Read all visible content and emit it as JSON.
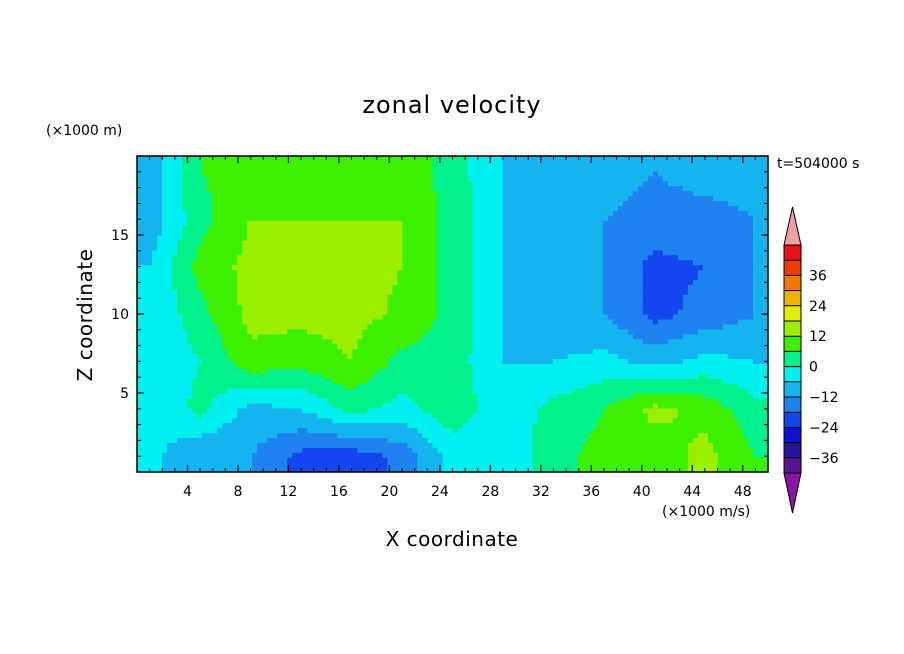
{
  "chart_data": {
    "type": "heatmap",
    "title": "zonal velocity",
    "xlabel": "X coordinate",
    "ylabel": "Z coordinate",
    "x_unit": "(×1000 m/s)",
    "y_unit": "(×1000 m)",
    "time_label": "t=504000 s",
    "xlim": [
      0,
      50
    ],
    "ylim": [
      0,
      20
    ],
    "x_ticks": [
      4,
      8,
      12,
      16,
      20,
      24,
      28,
      32,
      36,
      40,
      44,
      48
    ],
    "y_ticks": [
      5,
      10,
      15
    ],
    "grid": false,
    "colorbar": {
      "levels": [
        -42,
        -36,
        -30,
        -24,
        -18,
        -12,
        -6,
        0,
        6,
        12,
        18,
        24,
        30,
        36,
        42
      ],
      "colors": [
        "#5a1490",
        "#23149b",
        "#0a14d2",
        "#1446f0",
        "#1e82f0",
        "#14b4f0",
        "#00f0f0",
        "#00f08c",
        "#3cf000",
        "#9bf000",
        "#dcf000",
        "#f0b400",
        "#f07800",
        "#f03c00",
        "#e61414"
      ],
      "tick_labels": [
        "36",
        "24",
        "12",
        "0",
        "−12",
        "−24",
        "−36"
      ],
      "under_color": "#8c14a0",
      "over_color": "#f0a0a0"
    },
    "field": {
      "x": [
        1,
        5,
        9,
        13,
        17,
        21,
        25,
        29,
        33,
        37,
        41,
        45,
        49
      ],
      "z": [
        1,
        4,
        7,
        10,
        13,
        16,
        19
      ],
      "values": [
        [
          -4,
          -12,
          -12,
          -20,
          -22,
          -16,
          -4,
          -6,
          4,
          8,
          8,
          14,
          6
        ],
        [
          -6,
          2,
          -8,
          -6,
          2,
          -2,
          4,
          -4,
          2,
          6,
          14,
          10,
          2
        ],
        [
          -6,
          0,
          10,
          8,
          12,
          4,
          3,
          -6,
          -6,
          -4,
          -8,
          -4,
          -6
        ],
        [
          -6,
          4,
          14,
          14,
          14,
          11,
          4,
          -6,
          -10,
          -12,
          -20,
          -16,
          -12
        ],
        [
          -6,
          8,
          14,
          16,
          14,
          12,
          4,
          -6,
          -8,
          -12,
          -20,
          -18,
          -12
        ],
        [
          -10,
          4,
          12,
          12,
          12,
          12,
          4,
          -6,
          -8,
          -12,
          -14,
          -14,
          -12
        ],
        [
          -10,
          6,
          8,
          10,
          10,
          10,
          3,
          -6,
          -8,
          -10,
          -12,
          -10,
          -10
        ]
      ]
    }
  }
}
